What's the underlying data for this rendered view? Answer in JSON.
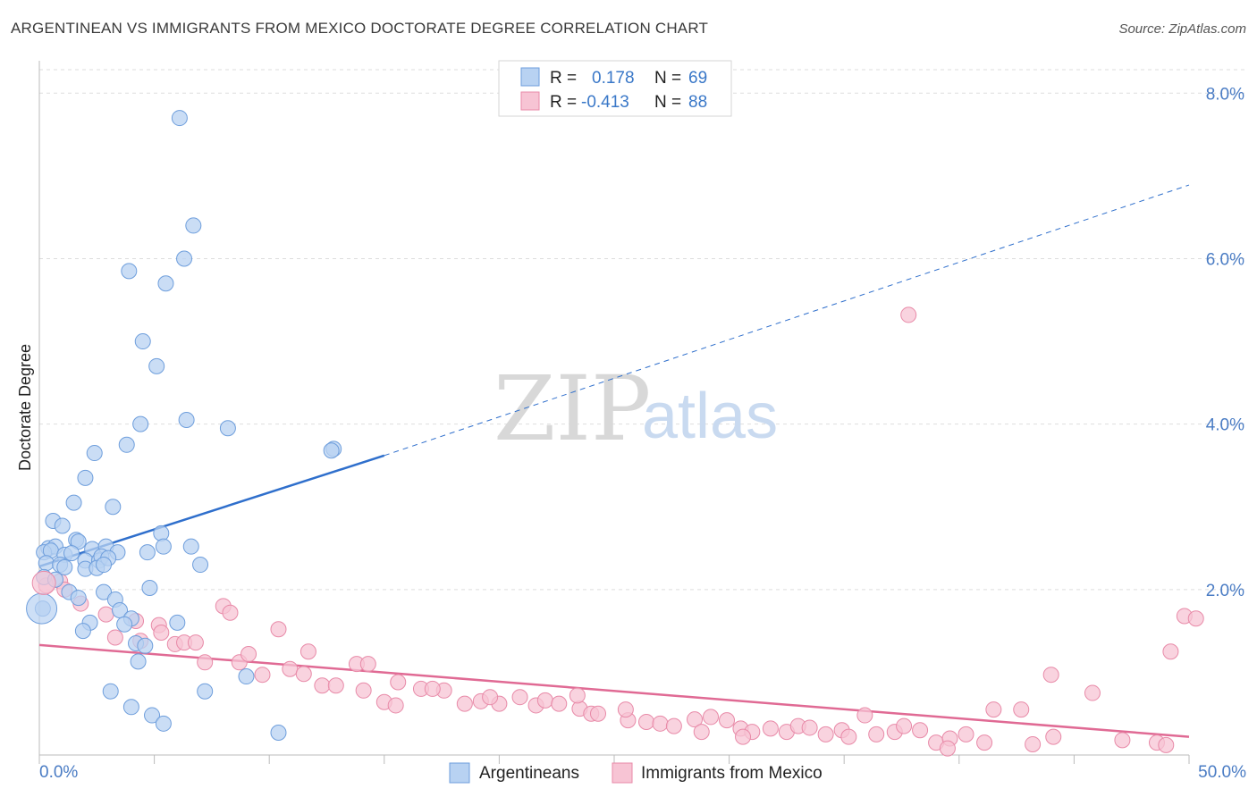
{
  "title": "ARGENTINEAN VS IMMIGRANTS FROM MEXICO DOCTORATE DEGREE CORRELATION CHART",
  "source": "Source: ZipAtlas.com",
  "watermark": {
    "zip": "ZIP",
    "atlas": "atlas"
  },
  "legend": {
    "r_label": "R =",
    "n_label": "N =",
    "rows": [
      {
        "r": "0.178",
        "n": "69"
      },
      {
        "r": "-0.413",
        "n": "88"
      }
    ]
  },
  "colors": {
    "blue_fill": "#b8d2f2",
    "blue_stroke": "#6e9edc",
    "blue_line": "#2f6fcc",
    "pink_fill": "#f7c4d4",
    "pink_stroke": "#e88aa8",
    "pink_line": "#e06a94",
    "grid": "#dddddd",
    "tick_text": "#4a7cc4"
  },
  "chart_data": {
    "type": "scatter",
    "title": "ARGENTINEAN VS IMMIGRANTS FROM MEXICO DOCTORATE DEGREE CORRELATION CHART",
    "xlabel": "",
    "ylabel": "Doctorate Degree",
    "xlim": [
      0,
      50
    ],
    "ylim": [
      0,
      8.5
    ],
    "x_tick_labels": [
      "0.0%",
      "50.0%"
    ],
    "y_ticks": [
      2,
      4,
      6,
      8
    ],
    "y_tick_labels": [
      "2.0%",
      "4.0%",
      "6.0%",
      "8.0%"
    ],
    "legend_position": "top-center",
    "series": [
      {
        "name": "Argentineans",
        "R": 0.178,
        "N": 69,
        "trend": {
          "x0": 0,
          "y0": 2.28,
          "x1": 15,
          "y1": 3.62,
          "dashed_to_x": 50,
          "dashed_to_y": 6.89
        },
        "points": [
          [
            6.1,
            7.7
          ],
          [
            6.7,
            6.4
          ],
          [
            6.3,
            6.0
          ],
          [
            3.9,
            5.85
          ],
          [
            5.5,
            5.7
          ],
          [
            4.5,
            5.0
          ],
          [
            5.1,
            4.7
          ],
          [
            4.4,
            4.0
          ],
          [
            6.4,
            4.05
          ],
          [
            8.2,
            3.95
          ],
          [
            12.8,
            3.7
          ],
          [
            12.7,
            3.68
          ],
          [
            3.8,
            3.75
          ],
          [
            2.4,
            3.65
          ],
          [
            2.0,
            3.35
          ],
          [
            1.5,
            3.05
          ],
          [
            3.2,
            3.0
          ],
          [
            0.6,
            2.83
          ],
          [
            1.0,
            2.77
          ],
          [
            1.6,
            2.6
          ],
          [
            1.7,
            2.58
          ],
          [
            5.3,
            2.68
          ],
          [
            0.4,
            2.5
          ],
          [
            0.7,
            2.52
          ],
          [
            2.3,
            2.49
          ],
          [
            2.9,
            2.52
          ],
          [
            3.4,
            2.45
          ],
          [
            4.7,
            2.45
          ],
          [
            5.4,
            2.52
          ],
          [
            6.6,
            2.52
          ],
          [
            0.2,
            2.45
          ],
          [
            0.5,
            2.47
          ],
          [
            1.1,
            2.42
          ],
          [
            1.4,
            2.44
          ],
          [
            2.0,
            2.35
          ],
          [
            2.6,
            2.35
          ],
          [
            2.7,
            2.4
          ],
          [
            3.0,
            2.38
          ],
          [
            0.3,
            2.32
          ],
          [
            0.9,
            2.3
          ],
          [
            1.1,
            2.27
          ],
          [
            2.0,
            2.25
          ],
          [
            2.5,
            2.26
          ],
          [
            7.0,
            2.3
          ],
          [
            0.2,
            2.15
          ],
          [
            0.7,
            2.12
          ],
          [
            1.3,
            1.97
          ],
          [
            2.8,
            1.97
          ],
          [
            4.8,
            2.02
          ],
          [
            1.7,
            1.9
          ],
          [
            3.3,
            1.88
          ],
          [
            3.5,
            1.75
          ],
          [
            0.15,
            1.77
          ],
          [
            4.0,
            1.65
          ],
          [
            2.2,
            1.6
          ],
          [
            3.7,
            1.58
          ],
          [
            6.0,
            1.6
          ],
          [
            1.9,
            1.5
          ],
          [
            4.2,
            1.35
          ],
          [
            4.6,
            1.32
          ],
          [
            4.3,
            1.13
          ],
          [
            9.0,
            0.95
          ],
          [
            3.1,
            0.77
          ],
          [
            7.2,
            0.77
          ],
          [
            4.0,
            0.58
          ],
          [
            4.9,
            0.48
          ],
          [
            5.4,
            0.38
          ],
          [
            10.4,
            0.27
          ],
          [
            2.8,
            2.3
          ]
        ]
      },
      {
        "name": "Immigrants from Mexico",
        "R": -0.413,
        "N": 88,
        "trend": {
          "x0": 0,
          "y0": 1.33,
          "x1": 50,
          "y1": 0.22
        },
        "points": [
          [
            37.8,
            5.32
          ],
          [
            0.3,
            2.05
          ],
          [
            0.9,
            2.1
          ],
          [
            1.1,
            2.0
          ],
          [
            1.8,
            1.83
          ],
          [
            2.9,
            1.7
          ],
          [
            8.0,
            1.8
          ],
          [
            8.3,
            1.72
          ],
          [
            4.2,
            1.62
          ],
          [
            5.2,
            1.57
          ],
          [
            3.3,
            1.42
          ],
          [
            4.4,
            1.38
          ],
          [
            5.3,
            1.48
          ],
          [
            10.4,
            1.52
          ],
          [
            5.9,
            1.34
          ],
          [
            6.3,
            1.36
          ],
          [
            6.8,
            1.36
          ],
          [
            11.7,
            1.25
          ],
          [
            8.7,
            1.12
          ],
          [
            7.2,
            1.12
          ],
          [
            9.1,
            1.22
          ],
          [
            13.8,
            1.1
          ],
          [
            14.3,
            1.1
          ],
          [
            10.9,
            1.04
          ],
          [
            11.5,
            0.98
          ],
          [
            9.7,
            0.97
          ],
          [
            15.6,
            0.88
          ],
          [
            16.6,
            0.8
          ],
          [
            12.3,
            0.84
          ],
          [
            12.9,
            0.84
          ],
          [
            17.6,
            0.78
          ],
          [
            14.1,
            0.78
          ],
          [
            17.1,
            0.8
          ],
          [
            18.5,
            0.62
          ],
          [
            15.0,
            0.64
          ],
          [
            15.5,
            0.6
          ],
          [
            19.2,
            0.65
          ],
          [
            20.0,
            0.62
          ],
          [
            19.6,
            0.7
          ],
          [
            20.9,
            0.7
          ],
          [
            21.6,
            0.6
          ],
          [
            22.0,
            0.66
          ],
          [
            22.6,
            0.62
          ],
          [
            23.5,
            0.56
          ],
          [
            23.4,
            0.72
          ],
          [
            24.0,
            0.5
          ],
          [
            24.3,
            0.5
          ],
          [
            25.6,
            0.42
          ],
          [
            25.5,
            0.55
          ],
          [
            26.4,
            0.4
          ],
          [
            27.0,
            0.38
          ],
          [
            27.6,
            0.35
          ],
          [
            28.5,
            0.43
          ],
          [
            28.8,
            0.28
          ],
          [
            29.2,
            0.46
          ],
          [
            29.9,
            0.42
          ],
          [
            30.5,
            0.32
          ],
          [
            31.0,
            0.28
          ],
          [
            31.8,
            0.32
          ],
          [
            32.5,
            0.28
          ],
          [
            33.0,
            0.35
          ],
          [
            33.5,
            0.33
          ],
          [
            34.2,
            0.25
          ],
          [
            34.9,
            0.3
          ],
          [
            35.2,
            0.22
          ],
          [
            35.9,
            0.48
          ],
          [
            36.4,
            0.25
          ],
          [
            37.2,
            0.28
          ],
          [
            38.3,
            0.3
          ],
          [
            37.6,
            0.35
          ],
          [
            39.0,
            0.15
          ],
          [
            39.6,
            0.2
          ],
          [
            40.3,
            0.25
          ],
          [
            41.1,
            0.15
          ],
          [
            41.5,
            0.55
          ],
          [
            42.7,
            0.55
          ],
          [
            43.2,
            0.13
          ],
          [
            44.1,
            0.22
          ],
          [
            44.0,
            0.97
          ],
          [
            45.8,
            0.75
          ],
          [
            47.1,
            0.18
          ],
          [
            48.6,
            0.15
          ],
          [
            49.0,
            0.12
          ],
          [
            49.2,
            1.25
          ],
          [
            49.8,
            1.68
          ],
          [
            50.3,
            1.65
          ],
          [
            39.5,
            0.08
          ],
          [
            30.6,
            0.22
          ]
        ]
      }
    ]
  }
}
